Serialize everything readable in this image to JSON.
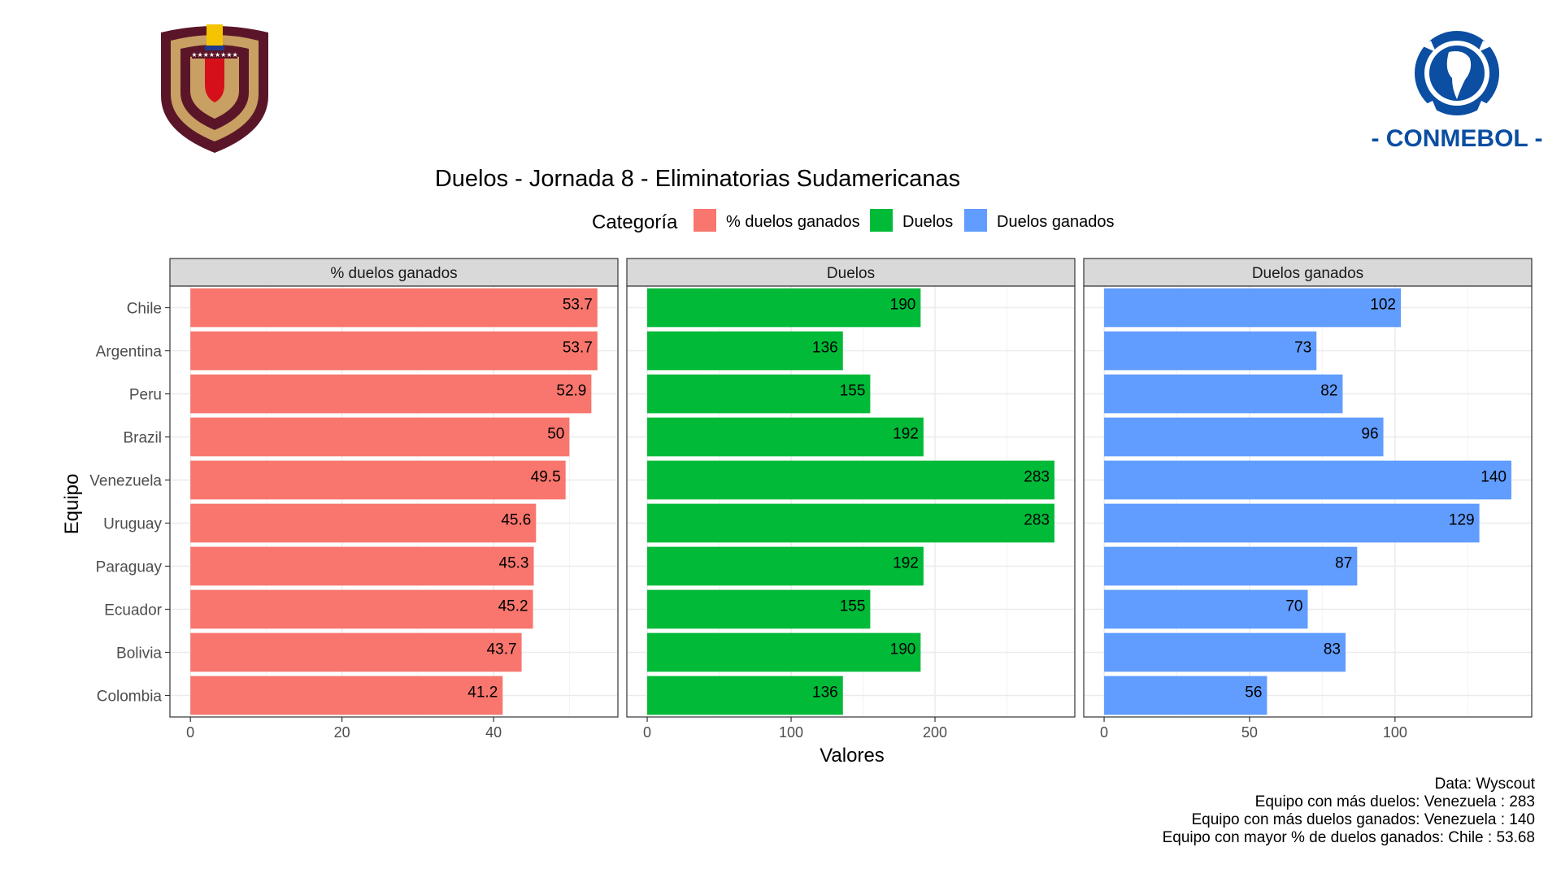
{
  "logos": {
    "left": {
      "name": "FVF crest"
    },
    "right": {
      "text": "- CONMEBOL -"
    }
  },
  "chart_data": {
    "type": "bar",
    "orientation": "horizontal",
    "title": "Duelos - Jornada 8 - Eliminatorias Sudamericanas",
    "legend": {
      "title": "Categoría",
      "position": "top",
      "items": [
        {
          "label": "% duelos ganados",
          "color": "#F8766D"
        },
        {
          "label": "Duelos",
          "color": "#00BA38"
        },
        {
          "label": "Duelos ganados",
          "color": "#619CFF"
        }
      ]
    },
    "ylabel": "Equipo",
    "xlabel": "Valores",
    "categories": [
      "Chile",
      "Argentina",
      "Peru",
      "Brazil",
      "Venezuela",
      "Uruguay",
      "Paraguay",
      "Ecuador",
      "Bolivia",
      "Colombia"
    ],
    "grid": true,
    "panels": [
      {
        "name": "% duelos ganados",
        "color": "#F8766D",
        "values": [
          53.7,
          53.7,
          52.9,
          50,
          49.5,
          45.6,
          45.3,
          45.2,
          43.7,
          41.2
        ],
        "xlim": [
          -2.7,
          56.4
        ],
        "ticks": [
          0,
          20,
          40
        ]
      },
      {
        "name": "Duelos",
        "color": "#00BA38",
        "values": [
          190,
          136,
          155,
          192,
          283,
          283,
          192,
          155,
          190,
          136
        ],
        "xlim": [
          -14.15,
          297.15
        ],
        "ticks": [
          0,
          100,
          200
        ]
      },
      {
        "name": "Duelos ganados",
        "color": "#619CFF",
        "values": [
          102,
          73,
          82,
          96,
          140,
          129,
          87,
          70,
          83,
          56
        ],
        "xlim": [
          -7,
          147
        ],
        "ticks": [
          0,
          50,
          100
        ]
      }
    ],
    "caption": [
      "Data: Wyscout ",
      "Equipo con más duelos: Venezuela : 283",
      "Equipo con más duelos ganados: Venezuela : 140",
      "Equipo con mayor % de duelos ganados: Chile : 53.68"
    ]
  }
}
